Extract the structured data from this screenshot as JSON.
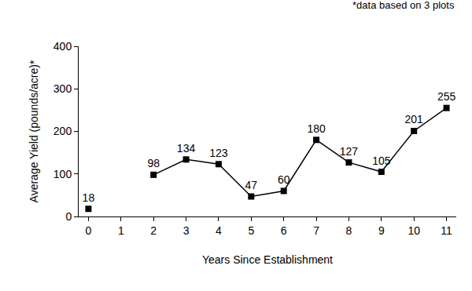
{
  "chart_data": {
    "type": "line",
    "x_label": "Years Since Establishment",
    "y_label": "Average Yield (pounds/acre)*",
    "annotations": [
      "*data based on 3 plots"
    ],
    "x": [
      0,
      1,
      2,
      3,
      4,
      5,
      6,
      7,
      8,
      9,
      10,
      11
    ],
    "values": [
      18,
      null,
      98,
      134,
      123,
      47,
      60,
      180,
      127,
      105,
      201,
      255
    ],
    "color": "#000000",
    "marker": "square",
    "line_style": "solid",
    "data_labels": true,
    "grid": false,
    "xlim": [
      -0.3,
      11.3
    ],
    "xticks": [
      0,
      1,
      2,
      3,
      4,
      5,
      6,
      7,
      8,
      9,
      10,
      11
    ],
    "ylim": [
      0,
      400
    ],
    "yticks": [
      0,
      100,
      200,
      300,
      400
    ]
  }
}
